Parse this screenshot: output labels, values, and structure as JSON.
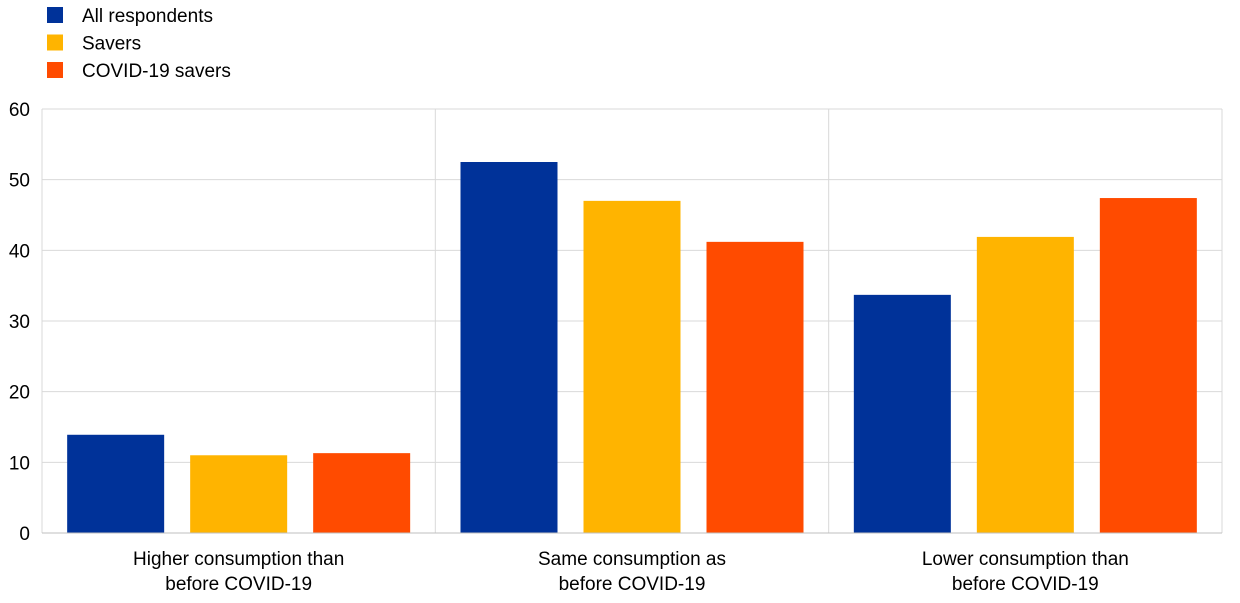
{
  "chart_data": {
    "type": "bar",
    "title": "",
    "xlabel": "",
    "ylabel": "",
    "ylim": [
      0,
      60
    ],
    "yticks": [
      0,
      10,
      20,
      30,
      40,
      50,
      60
    ],
    "grid": true,
    "legend_position": "top-left",
    "categories": [
      [
        "Higher consumption than",
        "before COVID-19"
      ],
      [
        "Same consumption as",
        "before COVID-19"
      ],
      [
        "Lower consumption than",
        "before COVID-19"
      ]
    ],
    "series": [
      {
        "name": "All respondents",
        "color": "#003299",
        "values": [
          13.9,
          52.5,
          33.7
        ]
      },
      {
        "name": "Savers",
        "color": "#FFB400",
        "values": [
          11.0,
          47.0,
          41.9
        ]
      },
      {
        "name": "COVID-19 savers",
        "color": "#FF4B00",
        "values": [
          11.3,
          41.2,
          47.4
        ]
      }
    ]
  }
}
